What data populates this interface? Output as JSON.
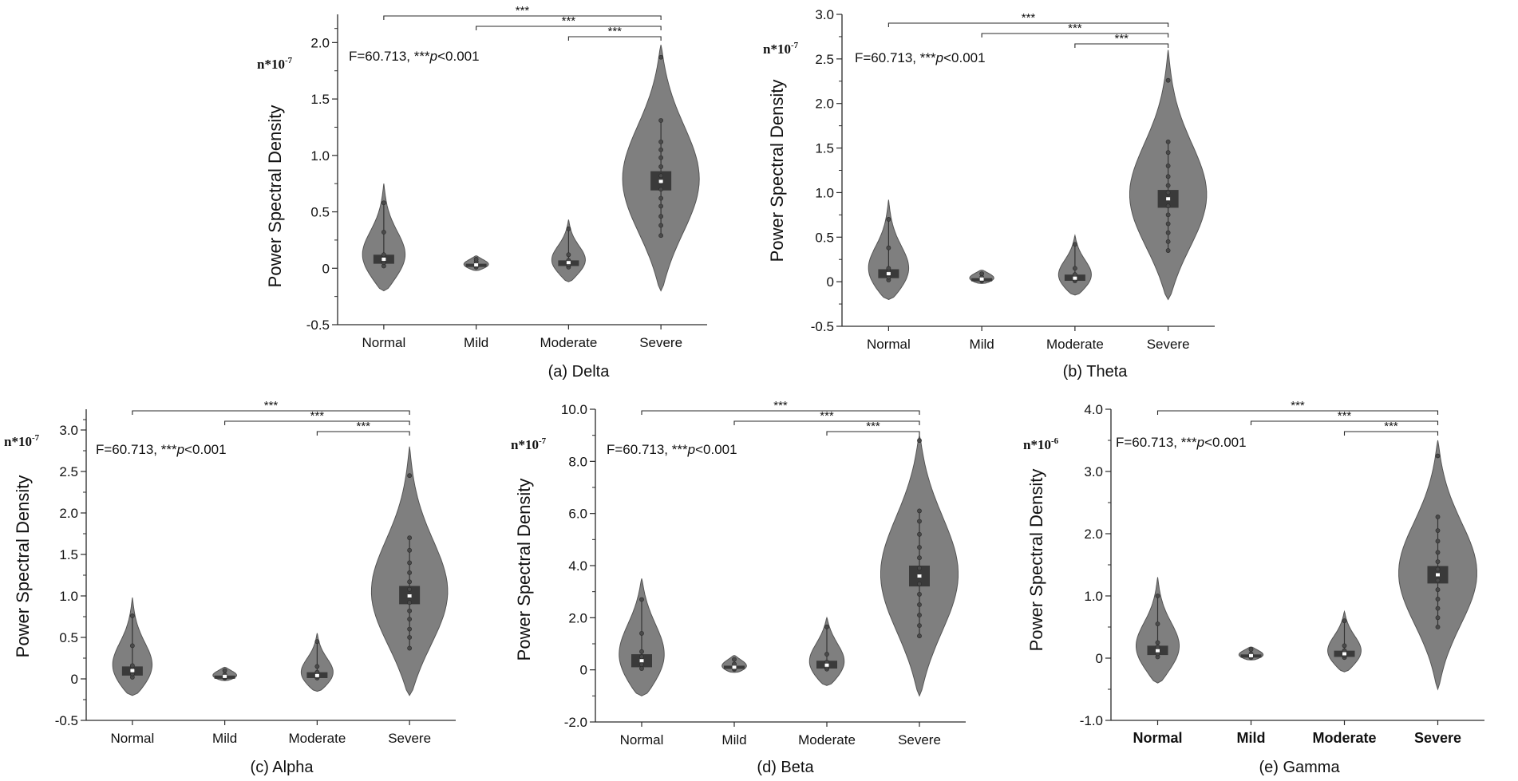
{
  "colors": {
    "violin": "#7f7f7f",
    "box": "#3a3a3a",
    "line": "#2a2a2a",
    "median": "#ffffff"
  },
  "chart_data": [
    {
      "id": "delta",
      "type": "violin",
      "caption": "(a) Delta",
      "ylabel": "Power Spectral Density",
      "exponent_label": "n*10-7",
      "exponent_base": "n*10",
      "exponent_sup": "-7",
      "annotation_main": "F=60.713, ",
      "annotation_stars": "***",
      "annotation_p": "p",
      "annotation_tail": "<0.001",
      "categories": [
        "Normal",
        "Mild",
        "Moderate",
        "Severe"
      ],
      "ylim": [
        -0.5,
        2.25
      ],
      "yticks": [
        -0.5,
        0,
        0.5,
        1.0,
        1.5,
        2.0
      ],
      "ytick_labels": [
        "-0.5",
        "0",
        "0.5",
        "1.0",
        "1.5",
        "2.0"
      ],
      "groups": [
        {
          "min": -0.2,
          "max": 0.75,
          "q1": 0.04,
          "q3": 0.12,
          "median": 0.08,
          "whisker_low": 0.02,
          "whisker_high": 0.58,
          "points": [
            0.02,
            0.05,
            0.07,
            0.09,
            0.12,
            0.32,
            0.58
          ]
        },
        {
          "min": -0.02,
          "max": 0.11,
          "q1": 0.02,
          "q3": 0.04,
          "median": 0.03,
          "whisker_low": 0.0,
          "whisker_high": 0.08,
          "points": [
            0.01,
            0.02,
            0.03,
            0.04,
            0.06,
            0.08
          ]
        },
        {
          "min": -0.12,
          "max": 0.43,
          "q1": 0.02,
          "q3": 0.07,
          "median": 0.05,
          "whisker_low": 0.0,
          "whisker_high": 0.35,
          "points": [
            0.01,
            0.03,
            0.05,
            0.07,
            0.12,
            0.35
          ]
        },
        {
          "min": -0.2,
          "max": 1.98,
          "q1": 0.69,
          "q3": 0.86,
          "median": 0.77,
          "whisker_low": 0.29,
          "whisker_high": 1.31,
          "points": [
            0.29,
            0.38,
            0.46,
            0.55,
            0.62,
            0.7,
            0.76,
            0.82,
            0.9,
            0.98,
            1.05,
            1.12,
            1.31,
            1.87
          ]
        }
      ],
      "brackets": [
        {
          "from": 0,
          "to": 3,
          "label": "***"
        },
        {
          "from": 1,
          "to": 3,
          "label": "***"
        },
        {
          "from": 2,
          "to": 3,
          "label": "***"
        }
      ]
    },
    {
      "id": "theta",
      "type": "violin",
      "caption": "(b) Theta",
      "ylabel": "Power Spectral Density",
      "exponent_label": "n*10-7",
      "exponent_base": "n*10",
      "exponent_sup": "-7",
      "annotation_main": "F=60.713, ",
      "annotation_stars": "***",
      "annotation_p": "p",
      "annotation_tail": "<0.001",
      "categories": [
        "Normal",
        "Mild",
        "Moderate",
        "Severe"
      ],
      "ylim": [
        -0.5,
        3.0
      ],
      "yticks": [
        -0.5,
        0,
        0.5,
        1.0,
        1.5,
        2.0,
        2.5,
        3.0
      ],
      "ytick_labels": [
        "-0.5",
        "0",
        "0.5",
        "1.0",
        "1.5",
        "2.0",
        "2.5",
        "3.0"
      ],
      "groups": [
        {
          "min": -0.2,
          "max": 0.92,
          "q1": 0.04,
          "q3": 0.14,
          "median": 0.09,
          "whisker_low": 0.02,
          "whisker_high": 0.7,
          "points": [
            0.02,
            0.05,
            0.08,
            0.11,
            0.15,
            0.38,
            0.7
          ]
        },
        {
          "min": -0.02,
          "max": 0.13,
          "q1": 0.01,
          "q3": 0.04,
          "median": 0.03,
          "whisker_low": 0.0,
          "whisker_high": 0.09,
          "points": [
            0.01,
            0.02,
            0.03,
            0.05,
            0.09
          ]
        },
        {
          "min": -0.15,
          "max": 0.52,
          "q1": 0.01,
          "q3": 0.08,
          "median": 0.04,
          "whisker_low": 0.0,
          "whisker_high": 0.42,
          "points": [
            0.01,
            0.03,
            0.05,
            0.08,
            0.15,
            0.42
          ]
        },
        {
          "min": -0.2,
          "max": 2.6,
          "q1": 0.83,
          "q3": 1.03,
          "median": 0.93,
          "whisker_low": 0.35,
          "whisker_high": 1.57,
          "points": [
            0.35,
            0.45,
            0.55,
            0.65,
            0.75,
            0.85,
            0.93,
            1.0,
            1.08,
            1.18,
            1.3,
            1.45,
            1.57,
            2.26
          ]
        }
      ],
      "brackets": [
        {
          "from": 0,
          "to": 3,
          "label": "***"
        },
        {
          "from": 1,
          "to": 3,
          "label": "***"
        },
        {
          "from": 2,
          "to": 3,
          "label": "***"
        }
      ]
    },
    {
      "id": "alpha",
      "type": "violin",
      "caption": "(c) Alpha",
      "ylabel": "Power Spectral Density",
      "exponent_label": "n*10-7",
      "exponent_base": "n*10",
      "exponent_sup": "-7",
      "annotation_main": "F=60.713, ",
      "annotation_stars": "***",
      "annotation_p": "p",
      "annotation_tail": "<0.001",
      "categories": [
        "Normal",
        "Mild",
        "Moderate",
        "Severe"
      ],
      "ylim": [
        -0.5,
        3.25
      ],
      "yticks": [
        -0.5,
        0,
        0.5,
        1.0,
        1.5,
        2.0,
        2.5,
        3.0
      ],
      "ytick_labels": [
        "-0.5",
        "0",
        "0.5",
        "1.0",
        "1.5",
        "2.0",
        "2.5",
        "3.0"
      ],
      "groups": [
        {
          "min": -0.2,
          "max": 0.98,
          "q1": 0.04,
          "q3": 0.15,
          "median": 0.1,
          "whisker_low": 0.02,
          "whisker_high": 0.76,
          "points": [
            0.02,
            0.06,
            0.09,
            0.12,
            0.16,
            0.4,
            0.76
          ]
        },
        {
          "min": -0.02,
          "max": 0.14,
          "q1": 0.01,
          "q3": 0.04,
          "median": 0.03,
          "whisker_low": 0.0,
          "whisker_high": 0.1,
          "points": [
            0.01,
            0.02,
            0.03,
            0.05,
            0.1
          ]
        },
        {
          "min": -0.15,
          "max": 0.55,
          "q1": 0.01,
          "q3": 0.08,
          "median": 0.04,
          "whisker_low": 0.0,
          "whisker_high": 0.45,
          "points": [
            0.01,
            0.03,
            0.05,
            0.08,
            0.15,
            0.45
          ]
        },
        {
          "min": -0.2,
          "max": 2.8,
          "q1": 0.9,
          "q3": 1.12,
          "median": 1.0,
          "whisker_low": 0.37,
          "whisker_high": 1.7,
          "points": [
            0.37,
            0.5,
            0.6,
            0.72,
            0.82,
            0.92,
            1.0,
            1.08,
            1.17,
            1.28,
            1.4,
            1.55,
            1.7,
            2.45
          ]
        }
      ],
      "brackets": [
        {
          "from": 0,
          "to": 3,
          "label": "***"
        },
        {
          "from": 1,
          "to": 3,
          "label": "***"
        },
        {
          "from": 2,
          "to": 3,
          "label": "***"
        }
      ]
    },
    {
      "id": "beta",
      "type": "violin",
      "caption": "(d) Beta",
      "ylabel": "Power Spectral Density",
      "exponent_label": "n*10-7",
      "exponent_base": "n*10",
      "exponent_sup": "-7",
      "annotation_main": "F=60.713, ",
      "annotation_stars": "***",
      "annotation_p": "p",
      "annotation_tail": "<0.001",
      "categories": [
        "Normal",
        "Mild",
        "Moderate",
        "Severe"
      ],
      "ylim": [
        -2.0,
        10.0
      ],
      "yticks": [
        -2.0,
        0,
        2.0,
        4.0,
        6.0,
        8.0,
        10.0
      ],
      "ytick_labels": [
        "-2.0",
        "0",
        "2.0",
        "4.0",
        "6.0",
        "8.0",
        "10.0"
      ],
      "groups": [
        {
          "min": -1.0,
          "max": 3.5,
          "q1": 0.1,
          "q3": 0.6,
          "median": 0.35,
          "whisker_low": 0.05,
          "whisker_high": 2.7,
          "points": [
            0.05,
            0.2,
            0.35,
            0.5,
            0.7,
            1.4,
            2.7
          ]
        },
        {
          "min": -0.1,
          "max": 0.55,
          "q1": 0.04,
          "q3": 0.16,
          "median": 0.1,
          "whisker_low": 0.0,
          "whisker_high": 0.4,
          "points": [
            0.02,
            0.06,
            0.1,
            0.15,
            0.22,
            0.4
          ]
        },
        {
          "min": -0.6,
          "max": 2.0,
          "q1": 0.05,
          "q3": 0.35,
          "median": 0.18,
          "whisker_low": 0.0,
          "whisker_high": 1.65,
          "points": [
            0.03,
            0.1,
            0.2,
            0.3,
            0.6,
            1.65
          ]
        },
        {
          "min": -1.0,
          "max": 9.0,
          "q1": 3.2,
          "q3": 4.0,
          "median": 3.6,
          "whisker_low": 1.3,
          "whisker_high": 6.1,
          "points": [
            1.3,
            1.7,
            2.1,
            2.5,
            2.9,
            3.3,
            3.6,
            3.9,
            4.3,
            4.7,
            5.2,
            5.7,
            6.1,
            8.8
          ]
        }
      ],
      "brackets": [
        {
          "from": 0,
          "to": 3,
          "label": "***"
        },
        {
          "from": 1,
          "to": 3,
          "label": "***"
        },
        {
          "from": 2,
          "to": 3,
          "label": "***"
        }
      ]
    },
    {
      "id": "gamma",
      "type": "violin",
      "caption": "(e) Gamma",
      "ylabel": "Power Spectral Density",
      "exponent_label": "n*10-6",
      "exponent_base": "n*10",
      "exponent_sup": "-6",
      "annotation_main": "F=60.713, ",
      "annotation_stars": "***",
      "annotation_p": "p",
      "annotation_tail": "<0.001",
      "categories": [
        "Normal",
        "Mild",
        "Moderate",
        "Severe"
      ],
      "ylim": [
        -1.0,
        4.0
      ],
      "yticks": [
        -1.0,
        0,
        1.0,
        2.0,
        3.0,
        4.0
      ],
      "ytick_labels": [
        "-1.0",
        "0",
        "1.0",
        "2.0",
        "3.0",
        "4.0"
      ],
      "groups": [
        {
          "min": -0.4,
          "max": 1.3,
          "q1": 0.05,
          "q3": 0.2,
          "median": 0.12,
          "whisker_low": 0.02,
          "whisker_high": 1.0,
          "points": [
            0.02,
            0.07,
            0.12,
            0.18,
            0.25,
            0.55,
            1.0
          ]
        },
        {
          "min": -0.03,
          "max": 0.18,
          "q1": 0.02,
          "q3": 0.06,
          "median": 0.04,
          "whisker_low": 0.0,
          "whisker_high": 0.14,
          "points": [
            0.01,
            0.03,
            0.05,
            0.07,
            0.14
          ]
        },
        {
          "min": -0.22,
          "max": 0.75,
          "q1": 0.02,
          "q3": 0.12,
          "median": 0.07,
          "whisker_low": 0.0,
          "whisker_high": 0.6,
          "points": [
            0.01,
            0.04,
            0.07,
            0.12,
            0.2,
            0.6
          ]
        },
        {
          "min": -0.5,
          "max": 3.5,
          "q1": 1.2,
          "q3": 1.48,
          "median": 1.34,
          "whisker_low": 0.5,
          "whisker_high": 2.27,
          "points": [
            0.5,
            0.65,
            0.8,
            0.95,
            1.1,
            1.25,
            1.34,
            1.43,
            1.55,
            1.7,
            1.88,
            2.05,
            2.27,
            3.25
          ]
        }
      ],
      "brackets": [
        {
          "from": 0,
          "to": 3,
          "label": "***"
        },
        {
          "from": 1,
          "to": 3,
          "label": "***"
        },
        {
          "from": 2,
          "to": 3,
          "label": "***"
        }
      ]
    }
  ]
}
